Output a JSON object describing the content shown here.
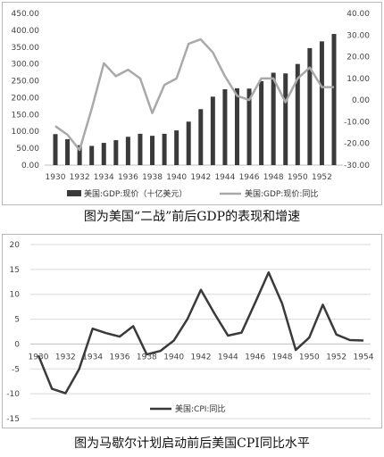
{
  "chart_data": [
    {
      "type": "bar+line",
      "caption": "图为美国“二战”前后GDP的表现和增速",
      "x_ticks": [
        "1930",
        "1932",
        "1934",
        "1936",
        "1938",
        "1940",
        "1942",
        "1944",
        "1946",
        "1948",
        "1950",
        "1952"
      ],
      "left_axis": {
        "ticks": [
          "450.00",
          "400.00",
          "350.00",
          "300.00",
          "250.00",
          "200.00",
          "150.00",
          "100.00",
          "50.00",
          "0.00"
        ],
        "ylim": [
          0,
          450
        ]
      },
      "right_axis": {
        "ticks": [
          "40.00",
          "30.00",
          "20.00",
          "10.00",
          "0.00",
          "-10.00",
          "-20.00",
          "-30.00"
        ],
        "ylim": [
          -30,
          40
        ]
      },
      "x": [
        1930,
        1931,
        1932,
        1933,
        1934,
        1935,
        1936,
        1937,
        1938,
        1939,
        1940,
        1941,
        1942,
        1943,
        1944,
        1945,
        1946,
        1947,
        1948,
        1949,
        1950,
        1951,
        1952,
        1953
      ],
      "series": [
        {
          "name": "美国:GDP:现价（十亿美元）",
          "kind": "bar",
          "axis": "left",
          "color": "#3a3a3a",
          "values": [
            92,
            77,
            59,
            57,
            66,
            74,
            84,
            93,
            87,
            93,
            103,
            129,
            166,
            203,
            225,
            228,
            227,
            249,
            274,
            272,
            300,
            347,
            367,
            389
          ]
        },
        {
          "name": "美国:GDP:现价:同比",
          "kind": "line",
          "axis": "right",
          "color": "#a9a9a9",
          "values": [
            -12,
            -16,
            -23,
            -4,
            17,
            11,
            14,
            10,
            -6,
            7,
            10,
            26,
            28,
            22,
            11,
            2,
            0,
            10,
            10,
            -1,
            10,
            15,
            6,
            6
          ]
        }
      ]
    },
    {
      "type": "line",
      "caption": "图为马歇尔计划启动前后美国CPI同比水平",
      "x_ticks": [
        "1930",
        "1932",
        "1934",
        "1936",
        "1938",
        "1940",
        "1942",
        "1944",
        "1946",
        "1948",
        "1950",
        "1952",
        "1954"
      ],
      "y_axis": {
        "ticks": [
          "20",
          "15",
          "10",
          "5",
          "0",
          "-5",
          "-10",
          "-15"
        ],
        "ylim": [
          -15,
          20
        ]
      },
      "x": [
        1930,
        1931,
        1932,
        1933,
        1934,
        1935,
        1936,
        1937,
        1938,
        1939,
        1940,
        1941,
        1942,
        1943,
        1944,
        1945,
        1946,
        1947,
        1948,
        1949,
        1950,
        1951,
        1952,
        1953,
        1954
      ],
      "series": [
        {
          "name": "美国:CPI:同比",
          "color": "#3a3a3a",
          "values": [
            -2.3,
            -9,
            -9.9,
            -5.1,
            3.1,
            2.2,
            1.5,
            3.6,
            -2.1,
            -1.4,
            0.7,
            5,
            10.9,
            6.1,
            1.7,
            2.3,
            8.3,
            14.4,
            8.1,
            -1.2,
            1.3,
            7.9,
            1.9,
            0.8,
            0.7
          ]
        }
      ]
    }
  ],
  "colors": {
    "bar": "#3a3a3a",
    "gdp_line": "#a9a9a9",
    "cpi_line": "#3a3a3a",
    "grid": "#d9d9d9"
  }
}
